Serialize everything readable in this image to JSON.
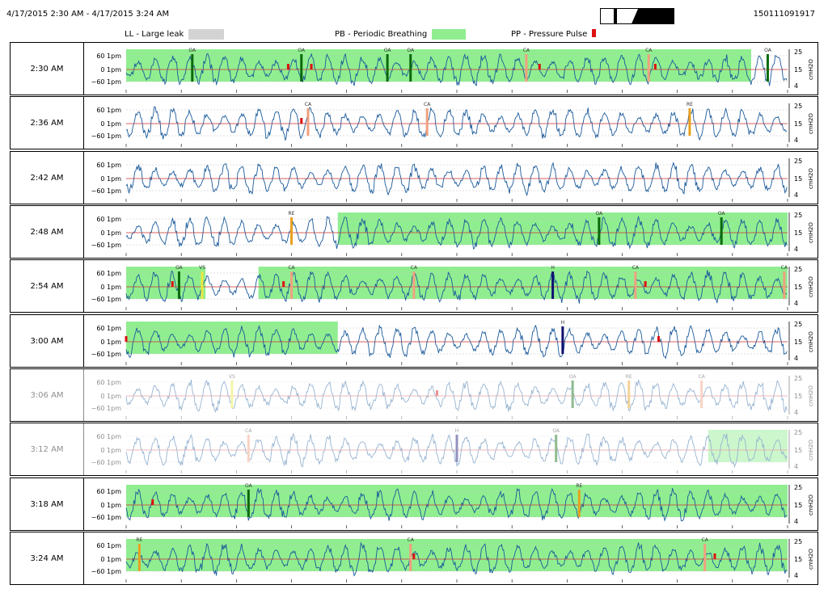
{
  "header": {
    "date_range": "4/17/2015  2:30 AM - 4/17/2015  3:24 AM",
    "report_id": "150111091917"
  },
  "legend": {
    "ll_label": "LL - Large leak",
    "ll_color": "#d3d3d3",
    "pb_label": "PB - Periodic Breathing",
    "pb_color": "#90ee90",
    "pp_label": "PP - Pressure Pulse",
    "pp_color": "#dd1111"
  },
  "colors": {
    "flow": "#1a5a9a",
    "pressure": "#cc3333",
    "OA": "#0a6a0a",
    "CA": "#f0a080",
    "RE": "#e8a020",
    "H": "#101070",
    "VS": "#e8e840",
    "grid": "#bfbfbf"
  },
  "chart_data": {
    "type": "line",
    "left_axis_ticks": [
      "60  1pm",
      "0  1pm",
      "−60  1pm"
    ],
    "right_axis_ticks": [
      "25",
      "15",
      "4"
    ],
    "right_axis_label": "cmH2O",
    "rows": [
      {
        "time": "2:30 AM",
        "faded": false,
        "pb": [
          [
            0.0,
            0.945
          ]
        ],
        "events": [
          {
            "t": "OA",
            "x": 0.1
          },
          {
            "t": "OA",
            "x": 0.265
          },
          {
            "t": "OA",
            "x": 0.395
          },
          {
            "t": "OA",
            "x": 0.43
          },
          {
            "t": "CA",
            "x": 0.605
          },
          {
            "t": "CA",
            "x": 0.79
          },
          {
            "t": "OA",
            "x": 0.97
          }
        ],
        "pp": [
          0.245,
          0.28,
          0.625,
          0.8
        ]
      },
      {
        "time": "2:36 AM",
        "faded": false,
        "pb": [],
        "events": [
          {
            "t": "CA",
            "x": 0.275
          },
          {
            "t": "CA",
            "x": 0.455
          },
          {
            "t": "RE",
            "x": 0.852
          }
        ],
        "pp": [
          0.265
        ]
      },
      {
        "time": "2:42 AM",
        "faded": false,
        "pb": [],
        "events": [],
        "pp": []
      },
      {
        "time": "2:48 AM",
        "faded": false,
        "pb": [
          [
            0.32,
            1.0
          ]
        ],
        "events": [
          {
            "t": "RE",
            "x": 0.25
          },
          {
            "t": "OA",
            "x": 0.715
          },
          {
            "t": "OA",
            "x": 0.9
          }
        ],
        "pp": []
      },
      {
        "time": "2:54 AM",
        "faded": false,
        "pb": [
          [
            0.0,
            0.12
          ],
          [
            0.2,
            1.0
          ]
        ],
        "events": [
          {
            "t": "OA",
            "x": 0.08
          },
          {
            "t": "VS",
            "x": 0.115
          },
          {
            "t": "CA",
            "x": 0.25
          },
          {
            "t": "CA",
            "x": 0.435
          },
          {
            "t": "H",
            "x": 0.645
          },
          {
            "t": "CA",
            "x": 0.77
          },
          {
            "t": "CA",
            "x": 0.995
          }
        ],
        "pp": [
          0.07,
          0.238,
          0.785
        ]
      },
      {
        "time": "3:00 AM",
        "faded": false,
        "pb": [
          [
            0.0,
            0.32
          ]
        ],
        "events": [
          {
            "t": "H",
            "x": 0.66
          }
        ],
        "pp": [
          0.0,
          0.805
        ]
      },
      {
        "time": "3:06 AM",
        "faded": true,
        "pb": [],
        "events": [
          {
            "t": "VS",
            "x": 0.16
          },
          {
            "t": "OA",
            "x": 0.675
          },
          {
            "t": "RE",
            "x": 0.76
          },
          {
            "t": "CA",
            "x": 0.87
          }
        ],
        "pp": [
          0.47
        ]
      },
      {
        "time": "3:12 AM",
        "faded": true,
        "pb": [
          [
            0.88,
            1.0
          ]
        ],
        "events": [
          {
            "t": "CA",
            "x": 0.185
          },
          {
            "t": "H",
            "x": 0.5
          },
          {
            "t": "OA",
            "x": 0.65
          }
        ],
        "pp": []
      },
      {
        "time": "3:18 AM",
        "faded": false,
        "pb": [
          [
            0.0,
            1.0
          ]
        ],
        "events": [
          {
            "t": "OA",
            "x": 0.185
          },
          {
            "t": "RE",
            "x": 0.685
          }
        ],
        "pp": [
          0.04
        ]
      },
      {
        "time": "3:24 AM",
        "faded": false,
        "pb": [
          [
            0.0,
            1.0
          ]
        ],
        "events": [
          {
            "t": "RE",
            "x": 0.02
          },
          {
            "t": "CA",
            "x": 0.43
          },
          {
            "t": "CA",
            "x": 0.875
          }
        ],
        "pp": [
          0.435,
          0.89
        ]
      }
    ]
  }
}
